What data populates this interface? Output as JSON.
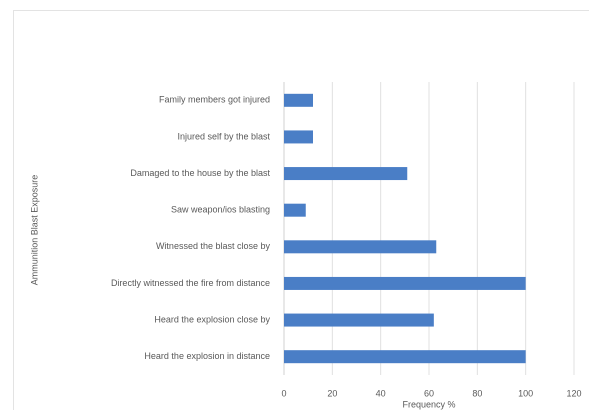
{
  "chart_data": {
    "type": "bar",
    "orientation": "horizontal",
    "categories": [
      "Family members got injured",
      "Injured self by the blast",
      "Damaged to the house by the blast",
      "Saw weapon/ios blasting",
      "Witnessed the blast close by",
      "Directly witnessed the fire from distance",
      "Heard the explosion close by",
      "Heard the explosion in distance"
    ],
    "values": [
      12,
      12,
      51,
      9,
      63,
      100,
      62,
      100
    ],
    "color": "#4a7ec6",
    "xlim": [
      0,
      120
    ],
    "xticks": [
      0,
      20,
      40,
      60,
      80,
      100,
      120
    ],
    "xlabel": "Frequency %",
    "ylabel": "Ammunition Blast Exposure",
    "grid": true
  }
}
